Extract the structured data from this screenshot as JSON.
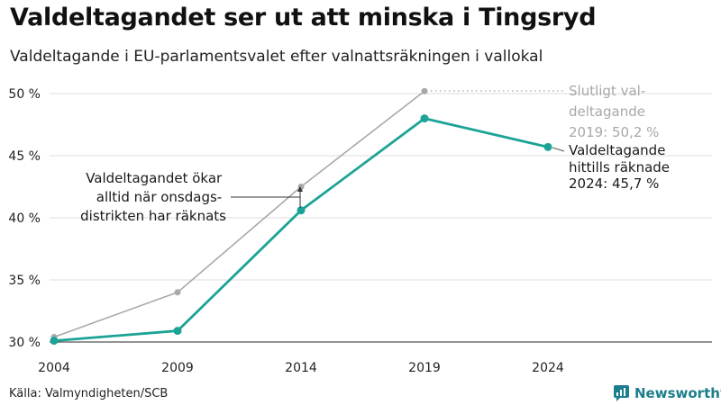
{
  "title": "Valdeltagandet ser ut att minska i Tingsryd",
  "subtitle": "Valdeltagande i EU-parlamentsvalet efter valnattsräkningen i vallokal",
  "source": "Källa: Valmyndigheten/SCB",
  "brand": "Newsworthy",
  "colors": {
    "teal": "#1ba396",
    "grey": "#a8a8a8",
    "brand": "#1c7d8c"
  },
  "chart_data": {
    "type": "line",
    "title": "Valdeltagandet ser ut att minska i Tingsryd",
    "subtitle": "Valdeltagande i EU-parlamentsvalet efter valnattsräkningen i vallokal",
    "x": [
      2004,
      2009,
      2014,
      2019,
      2024
    ],
    "xticks": [
      "2004",
      "2009",
      "2014",
      "2019",
      "2024"
    ],
    "ylim": [
      30,
      50
    ],
    "yticks": [
      30,
      35,
      40,
      45,
      50
    ],
    "ytick_labels": [
      "30 %",
      "35 %",
      "40 %",
      "45 %",
      "50 %"
    ],
    "grid": true,
    "series": [
      {
        "key": "final",
        "color": "#a8a8a8",
        "values": [
          30.4,
          34.0,
          42.5,
          50.2,
          null
        ]
      },
      {
        "key": "valnatt",
        "color": "#1ba396",
        "values": [
          30.1,
          30.9,
          40.6,
          48.0,
          45.7
        ]
      }
    ],
    "annotations": {
      "slutligt": [
        "Slutligt val-",
        "deltagande",
        "2019: 50,2 %"
      ],
      "hittills": [
        "Valdeltagande",
        "hittills räknade",
        "2024: 45,7 %"
      ],
      "okar": [
        "Valdeltagandet ökar",
        "alltid när onsdags-",
        "distrikten har räknats"
      ]
    }
  }
}
